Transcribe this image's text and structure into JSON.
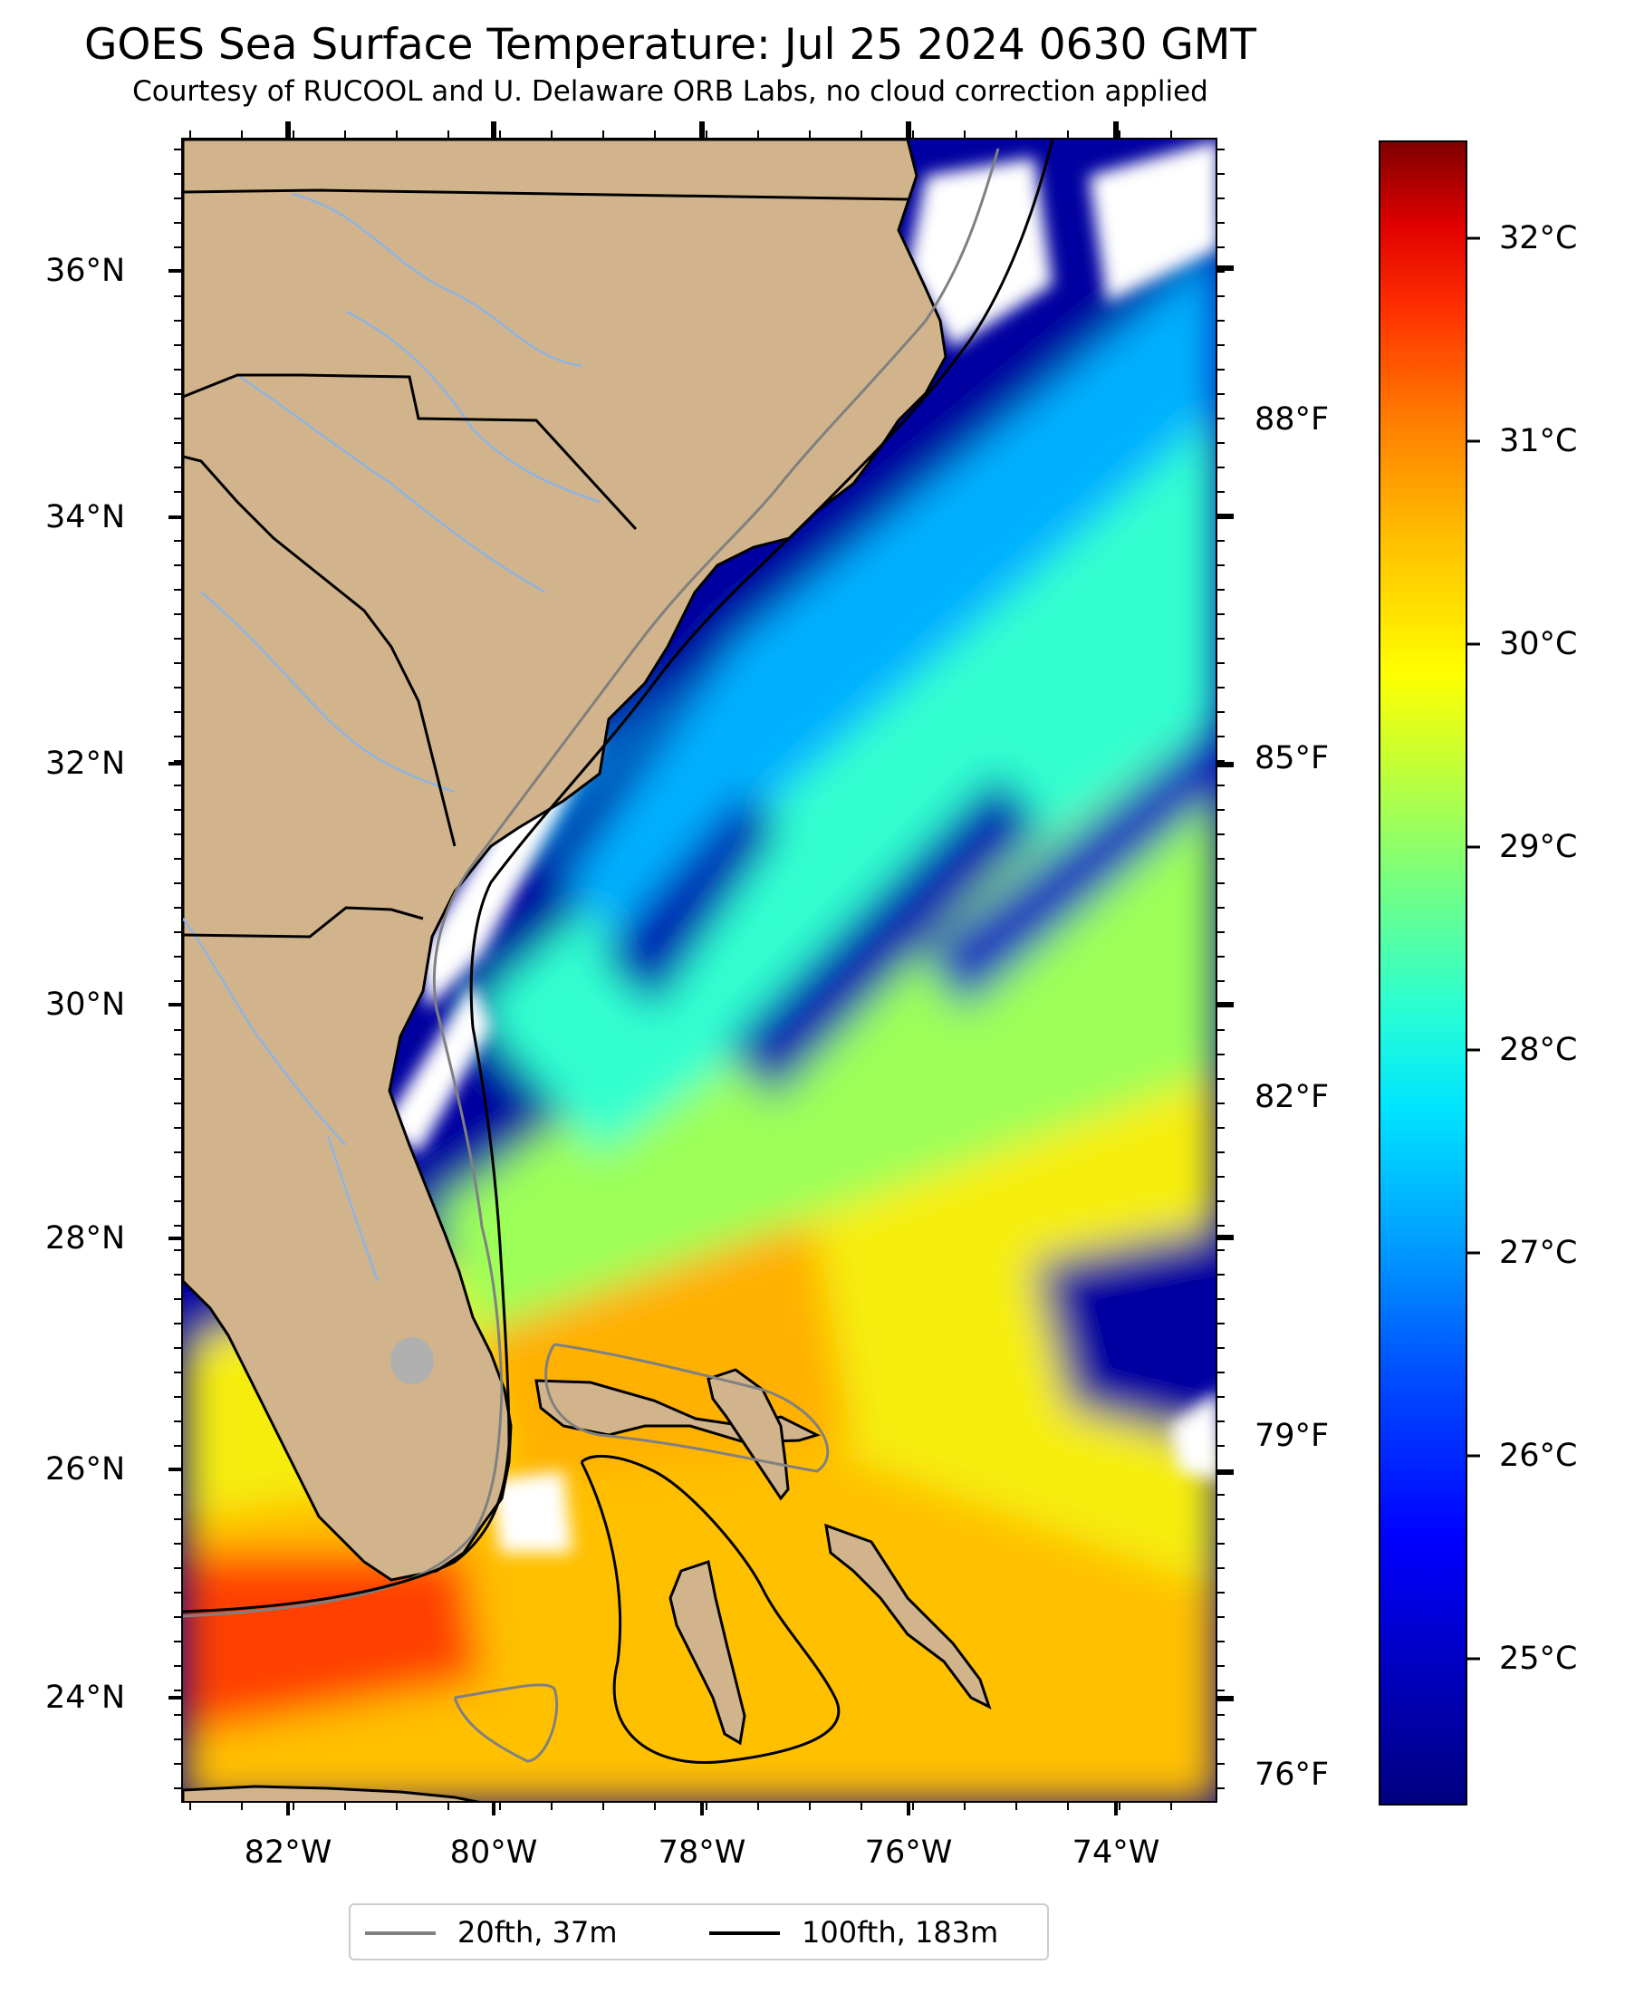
{
  "title": "GOES Sea Surface Temperature: Jul 25 2024 0630 GMT",
  "subtitle": "Courtesy of RUCOOL and U. Delaware ORB Labs, no cloud correction applied",
  "map": {
    "latitude_labels": [
      "36°N",
      "34°N",
      "32°N",
      "30°N",
      "28°N",
      "26°N",
      "24°N"
    ],
    "longitude_labels": [
      "82°W",
      "80°W",
      "78°W",
      "76°W",
      "74°W"
    ],
    "fahrenheit_labels": [
      "88°F",
      "85°F",
      "82°F",
      "79°F",
      "76°F"
    ],
    "colors": {
      "land": "#d2b48c",
      "cloud": "#ffffff",
      "cold_water": "#0000a0",
      "lake": "#b0b0b0",
      "river": "#8fb4e0"
    }
  },
  "colorbar": {
    "labels": [
      "32°C",
      "31°C",
      "30°C",
      "29°C",
      "28°C",
      "27°C",
      "26°C",
      "25°C"
    ],
    "colormap": "jet"
  },
  "legend": {
    "items": [
      {
        "label": "20fth, 37m",
        "color": "#808080"
      },
      {
        "label": "100fth, 183m",
        "color": "#000000"
      }
    ]
  }
}
